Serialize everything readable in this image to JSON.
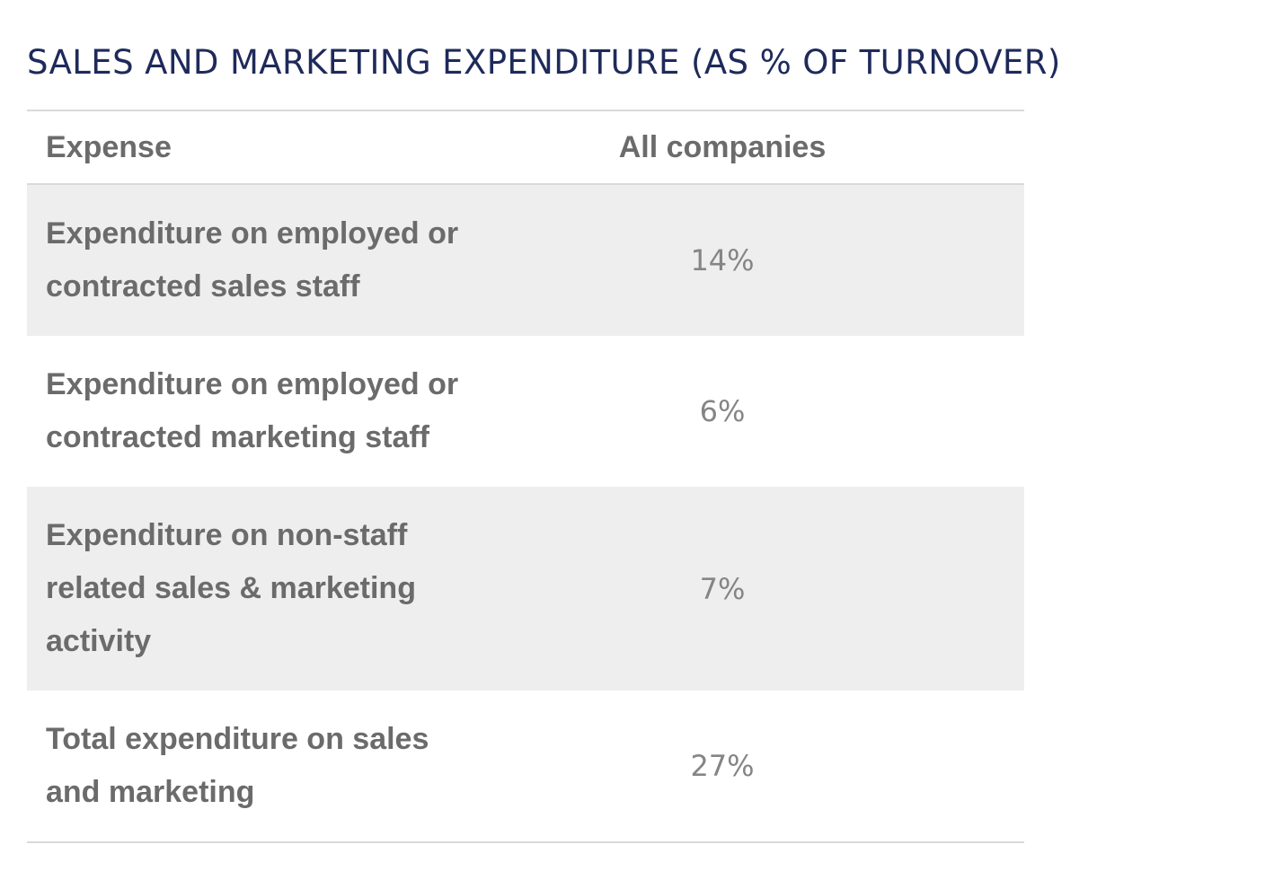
{
  "title": "SALES AND MARKETING EXPENDITURE (AS % OF TURNOVER)",
  "table": {
    "headers": {
      "expense": "Expense",
      "all_companies": "All companies"
    },
    "rows": [
      {
        "expense": "Expenditure on employed or contracted sales staff",
        "value": "14%"
      },
      {
        "expense": "Expenditure on employed or contracted marketing staff",
        "value": "6%"
      },
      {
        "expense": "Expenditure on non-staff related sales & marketing activity",
        "value": "7%"
      },
      {
        "expense": "Total expenditure on sales and marketing",
        "value": "27%"
      }
    ]
  },
  "colors": {
    "title": "#1e2a5a",
    "text": "#6b6b6b",
    "value_text": "#858585",
    "stripe": "#eeeeee",
    "rule": "#d9d9d9"
  }
}
